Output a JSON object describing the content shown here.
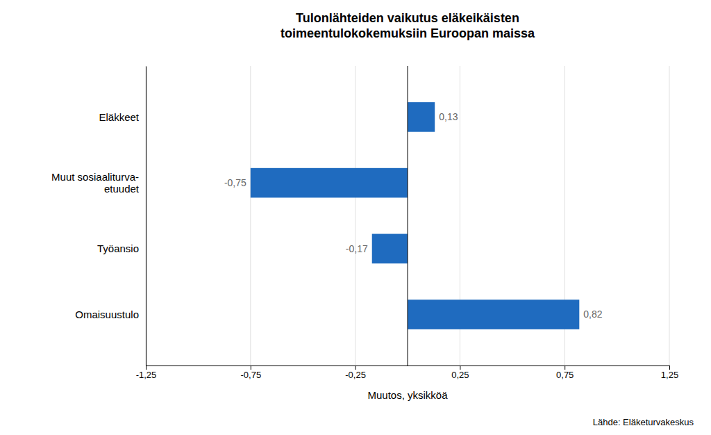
{
  "chart_data": {
    "type": "bar",
    "orientation": "horizontal",
    "title": "Tulonlähteiden vaikutus eläkeikäisten\ntoimeentulokokemuksiin Euroopan maissa",
    "categories": [
      "Eläkkeet",
      "Muut sosiaaliturva-\netuudet",
      "Työansio",
      "Omaisuustulo"
    ],
    "values": [
      0.13,
      -0.75,
      -0.17,
      0.82
    ],
    "value_labels": [
      "0,13",
      "-0,75",
      "-0,17",
      "0,82"
    ],
    "data_labels": true,
    "color": "#1F6BBF",
    "x_label": "Muutos, yksikköä",
    "xlim": [
      -1.25,
      1.25
    ],
    "xticks": [
      {
        "value": -1.25,
        "label": "-1,25"
      },
      {
        "value": -0.75,
        "label": "-0,75"
      },
      {
        "value": -0.25,
        "label": "-0,25"
      },
      {
        "value": 0.25,
        "label": "0,25"
      },
      {
        "value": 0.75,
        "label": "0,75"
      },
      {
        "value": 1.25,
        "label": "1,25"
      }
    ],
    "grid": true,
    "annotations": [
      "Lähde: Eläketurvakeskus"
    ]
  }
}
